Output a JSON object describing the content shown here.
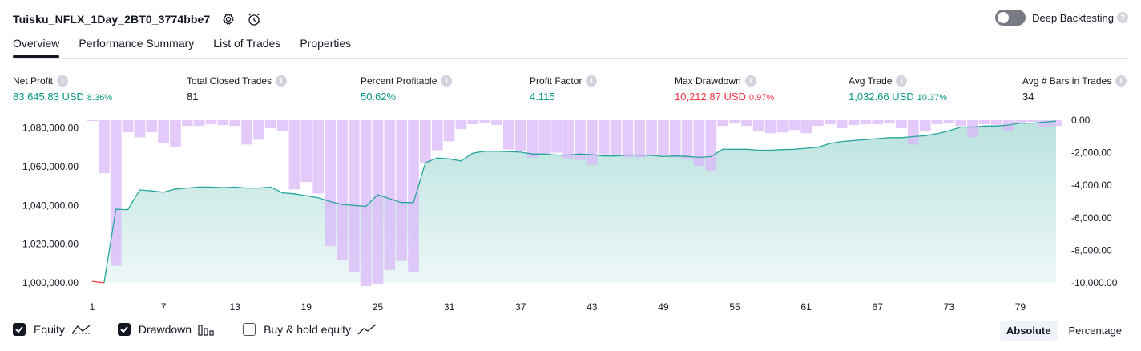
{
  "header": {
    "title": "Tuisku_NFLX_1Day_2BT0_3774bbe7",
    "deep_backtesting_label": "Deep Backtesting"
  },
  "tabs": [
    {
      "label": "Overview",
      "active": true
    },
    {
      "label": "Performance Summary",
      "active": false
    },
    {
      "label": "List of Trades",
      "active": false
    },
    {
      "label": "Properties",
      "active": false
    }
  ],
  "metrics": [
    {
      "label": "Net Profit",
      "value": "83,645.83 USD",
      "pct": "8.36%",
      "color": "green"
    },
    {
      "label": "Total Closed Trades",
      "value": "81",
      "pct": "",
      "color": "plain"
    },
    {
      "label": "Percent Profitable",
      "value": "50.62%",
      "pct": "",
      "color": "green"
    },
    {
      "label": "Profit Factor",
      "value": "4.115",
      "pct": "",
      "color": "green"
    },
    {
      "label": "Max Drawdown",
      "value": "10,212.87 USD",
      "pct": "0.97%",
      "color": "red"
    },
    {
      "label": "Avg Trade",
      "value": "1,032.66 USD",
      "pct": "10.37%",
      "color": "green"
    },
    {
      "label": "Avg # Bars in Trades",
      "value": "34",
      "pct": "",
      "color": "plain"
    }
  ],
  "chart_data": {
    "type": "area",
    "x_ticks": [
      "1",
      "7",
      "13",
      "19",
      "25",
      "31",
      "37",
      "43",
      "49",
      "55",
      "61",
      "67",
      "73",
      "79"
    ],
    "y_left_ticks": [
      "1,080,000.00",
      "1,060,000.00",
      "1,040,000.00",
      "1,020,000.00",
      "1,000,000.00"
    ],
    "y_left_ticks_values": [
      1080000,
      1060000,
      1040000,
      1020000,
      1000000
    ],
    "y_right_ticks": [
      "0.00",
      "-2,000.00",
      "-4,000.00",
      "-6,000.00",
      "-8,000.00",
      "-10,000.00"
    ],
    "y_right_ticks_values": [
      0,
      -2000,
      -4000,
      -6000,
      -8000,
      -10000
    ],
    "ylim_left": [
      1000000,
      1084000
    ],
    "ylim_right": [
      -10000,
      0
    ],
    "x_range": [
      1,
      82
    ],
    "equity": {
      "name": "Equity",
      "x": [
        1,
        2,
        3,
        4,
        5,
        6,
        7,
        8,
        9,
        10,
        11,
        12,
        13,
        14,
        15,
        16,
        17,
        18,
        19,
        20,
        21,
        22,
        23,
        24,
        25,
        26,
        27,
        28,
        29,
        30,
        31,
        32,
        33,
        34,
        35,
        36,
        37,
        38,
        39,
        40,
        41,
        42,
        43,
        44,
        45,
        46,
        47,
        48,
        49,
        50,
        51,
        52,
        53,
        54,
        55,
        56,
        57,
        58,
        59,
        60,
        61,
        62,
        63,
        64,
        65,
        66,
        67,
        68,
        69,
        70,
        71,
        72,
        73,
        74,
        75,
        76,
        77,
        78,
        79,
        80,
        81,
        82
      ],
      "values": [
        1000800,
        1000000,
        1038000,
        1037800,
        1048000,
        1047500,
        1046800,
        1048500,
        1049000,
        1049500,
        1049500,
        1049200,
        1049500,
        1049000,
        1049000,
        1049500,
        1046500,
        1046000,
        1045000,
        1044000,
        1042000,
        1040500,
        1040000,
        1039500,
        1045500,
        1043500,
        1041500,
        1041500,
        1062000,
        1064500,
        1064000,
        1063000,
        1067000,
        1068000,
        1068000,
        1067800,
        1067500,
        1066500,
        1066500,
        1066000,
        1066000,
        1066500,
        1066200,
        1065500,
        1065500,
        1066000,
        1066000,
        1065800,
        1065200,
        1065500,
        1065300,
        1064800,
        1065200,
        1069000,
        1069000,
        1069000,
        1068500,
        1068500,
        1068800,
        1069000,
        1069500,
        1070000,
        1072000,
        1073000,
        1073500,
        1074000,
        1074500,
        1075000,
        1075000,
        1075500,
        1076000,
        1077000,
        1078500,
        1080500,
        1080500,
        1081000,
        1081000,
        1081500,
        1082500,
        1082500,
        1083000,
        1083500
      ]
    },
    "drawdown": {
      "name": "Drawdown",
      "x": [
        1,
        2,
        3,
        4,
        5,
        6,
        7,
        8,
        9,
        10,
        11,
        12,
        13,
        14,
        15,
        16,
        17,
        18,
        19,
        20,
        21,
        22,
        23,
        24,
        25,
        26,
        27,
        28,
        29,
        30,
        31,
        32,
        33,
        34,
        35,
        36,
        37,
        38,
        39,
        40,
        41,
        42,
        43,
        44,
        45,
        46,
        47,
        48,
        49,
        50,
        51,
        52,
        53,
        54,
        55,
        56,
        57,
        58,
        59,
        60,
        61,
        62,
        63,
        64,
        65,
        66,
        67,
        68,
        69,
        70,
        71,
        72,
        73,
        74,
        75,
        76,
        77,
        78,
        79,
        80,
        81,
        82
      ],
      "values": [
        -50,
        -3250,
        -8950,
        -750,
        -1050,
        -750,
        -1400,
        -1650,
        -350,
        -350,
        -250,
        -300,
        -350,
        -1500,
        -1200,
        -500,
        -650,
        -4250,
        -3800,
        -4500,
        -7750,
        -8600,
        -9350,
        -10200,
        -10050,
        -9200,
        -8650,
        -9300,
        -2650,
        -1850,
        -1300,
        -550,
        -250,
        -150,
        -300,
        -1800,
        -1900,
        -2300,
        -2100,
        -2000,
        -2350,
        -2450,
        -2750,
        -2100,
        -2200,
        -2300,
        -2300,
        -2200,
        -2200,
        -2300,
        -2400,
        -2800,
        -3150,
        -350,
        -200,
        -350,
        -650,
        -800,
        -750,
        -600,
        -800,
        -350,
        -250,
        -500,
        -300,
        -250,
        -250,
        -200,
        -500,
        -1500,
        -650,
        -250,
        -200,
        -350,
        -1050,
        -250,
        -300,
        -650,
        -150,
        -100,
        -400,
        -350
      ]
    },
    "colors": {
      "equity_line": "#26a69a",
      "equity_fill": "#26a69a",
      "start_line": "#f23645",
      "drawdown_bar": "#d9b8f9"
    },
    "grid": false
  },
  "legend": [
    {
      "label": "Equity",
      "checked": true,
      "icon": "equity-line-icon"
    },
    {
      "label": "Drawdown",
      "checked": true,
      "icon": "drawdown-bars-icon"
    },
    {
      "label": "Buy & hold equity",
      "checked": false,
      "icon": "buy-hold-line-icon"
    }
  ],
  "modes": [
    {
      "label": "Absolute",
      "active": true
    },
    {
      "label": "Percentage",
      "active": false
    }
  ]
}
